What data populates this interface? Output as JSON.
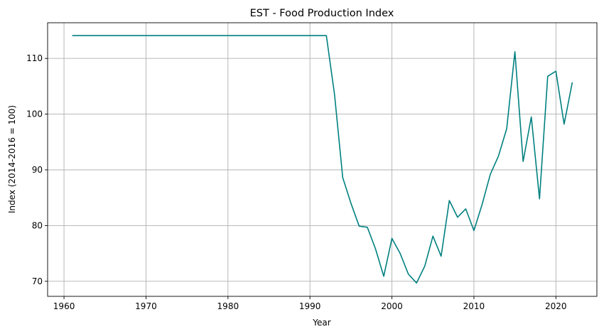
{
  "chart_data": {
    "type": "line",
    "title": "EST - Food Production Index",
    "xlabel": "Year",
    "ylabel": "Index (2014-2016 = 100)",
    "xlim": [
      1958,
      2025
    ],
    "ylim": [
      67.3,
      116.4
    ],
    "xticks": [
      1960,
      1970,
      1980,
      1990,
      2000,
      2010,
      2020
    ],
    "yticks": [
      70,
      80,
      90,
      100,
      110
    ],
    "grid": true,
    "series": [
      {
        "color": "#008080",
        "x": [
          1961,
          1962,
          1963,
          1964,
          1965,
          1966,
          1967,
          1968,
          1969,
          1970,
          1971,
          1972,
          1973,
          1974,
          1975,
          1976,
          1977,
          1978,
          1979,
          1980,
          1981,
          1982,
          1983,
          1984,
          1985,
          1986,
          1987,
          1988,
          1989,
          1990,
          1991,
          1992,
          1993,
          1994,
          1995,
          1996,
          1997,
          1998,
          1999,
          2000,
          2001,
          2002,
          2003,
          2004,
          2005,
          2006,
          2007,
          2008,
          2009,
          2010,
          2011,
          2012,
          2013,
          2014,
          2015,
          2016,
          2017,
          2018,
          2019,
          2020,
          2021,
          2022
        ],
        "y": [
          114.1,
          114.1,
          114.1,
          114.1,
          114.1,
          114.1,
          114.1,
          114.1,
          114.1,
          114.1,
          114.1,
          114.1,
          114.1,
          114.1,
          114.1,
          114.1,
          114.1,
          114.1,
          114.1,
          114.1,
          114.1,
          114.1,
          114.1,
          114.1,
          114.1,
          114.1,
          114.1,
          114.1,
          114.1,
          114.1,
          114.1,
          114.1,
          103.5,
          88.6,
          84.0,
          79.9,
          79.7,
          75.8,
          70.9,
          77.7,
          75.0,
          71.3,
          69.7,
          72.7,
          78.1,
          74.5,
          84.5,
          81.5,
          83.0,
          79.1,
          83.8,
          89.2,
          92.5,
          97.4,
          111.2,
          91.5,
          99.5,
          84.8,
          106.8,
          107.7,
          98.2,
          105.7
        ]
      }
    ]
  }
}
